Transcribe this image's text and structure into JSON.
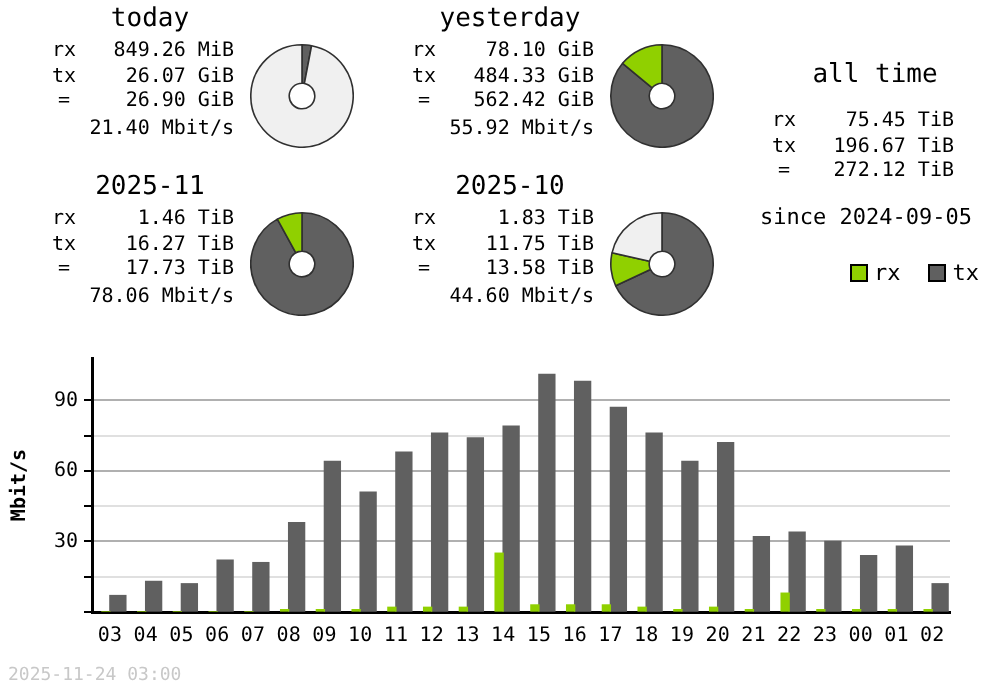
{
  "chart_data": [
    {
      "type": "donut",
      "title": "today",
      "categories": [
        null,
        null,
        null
      ],
      "values": [
        3,
        null,
        97
      ],
      "colors": [
        "#606060",
        "#90d000",
        "#f0f0f0"
      ],
      "annotations": [
        "rx 849.26 MiB",
        "tx 26.07 GiB",
        "= 26.90 GiB",
        "21.40 Mbit/s"
      ]
    },
    {
      "type": "donut",
      "title": "yesterday",
      "categories": [
        null,
        null
      ],
      "values": [
        86,
        14
      ],
      "colors": [
        "#606060",
        "#90d000"
      ],
      "annotations": [
        "rx 78.10 GiB",
        "tx 484.33 GiB",
        "= 562.42 GiB",
        "55.92 Mbit/s"
      ]
    },
    {
      "type": "other",
      "title": "all time",
      "annotations": [
        "rx 75.45 TiB",
        "tx 196.67 TiB",
        "= 272.12 TiB",
        "since 2024-09-05"
      ]
    },
    {
      "type": "donut",
      "title": "2025-11",
      "categories": [
        null,
        null
      ],
      "values": [
        92,
        8
      ],
      "colors": [
        "#606060",
        "#90d000"
      ],
      "annotations": [
        "rx 1.46 TiB",
        "tx 16.27 TiB",
        "= 17.73 TiB",
        "78.06 Mbit/s"
      ]
    },
    {
      "type": "donut",
      "title": "2025-10",
      "categories": [
        null,
        null,
        null
      ],
      "values": [
        68,
        10.5,
        21.5
      ],
      "colors": [
        "#606060",
        "#90d000",
        "#f0f0f0"
      ],
      "annotations": [
        "rx 1.83 TiB",
        "tx 11.75 TiB",
        "= 13.58 TiB",
        "44.60 Mbit/s"
      ]
    },
    {
      "type": "bar",
      "ylabel": "Mbit/s",
      "categories": [
        "03",
        "04",
        "05",
        "06",
        "07",
        "08",
        "09",
        "10",
        "11",
        "12",
        "13",
        "14",
        "15",
        "16",
        "17",
        "18",
        "19",
        "20",
        "21",
        "22",
        "23",
        "00",
        "01",
        "02"
      ],
      "series": [
        {
          "name": "rx",
          "color": "#90d000",
          "values": [
            0,
            0,
            0,
            0,
            0,
            1,
            1,
            1,
            2,
            2,
            2,
            25,
            3,
            3,
            3,
            2,
            1,
            2,
            1,
            8,
            1,
            1,
            1,
            1
          ]
        },
        {
          "name": "tx",
          "color": "#606060",
          "values": [
            7,
            13,
            12,
            22,
            21,
            38,
            64,
            51,
            68,
            76,
            74,
            79,
            101,
            98,
            87,
            76,
            64,
            72,
            32,
            34,
            30,
            24,
            28,
            12
          ]
        }
      ],
      "ylim": [
        0,
        108
      ],
      "yticks": [
        {
          "value": 0,
          "label": null
        },
        {
          "value": 15,
          "label": null
        },
        30,
        {
          "value": 45,
          "label": null
        },
        60,
        {
          "value": 75,
          "label": null
        },
        90
      ],
      "grid": "y",
      "legend": "top right",
      "annotations": [
        "2025-11-24 03:00"
      ]
    }
  ]
}
